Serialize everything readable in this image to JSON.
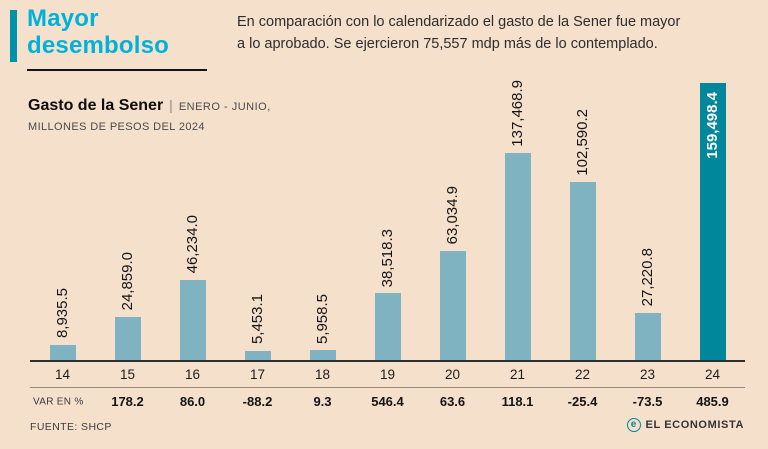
{
  "palette": {
    "background": "#f5e0cc",
    "title": "#00b2d9",
    "accent_bar": "#0092ab",
    "bar": "#7fb3c1",
    "bar_highlight": "#00879c",
    "axis": "#2f2f2f",
    "text_gray": "#4a4a4a"
  },
  "header": {
    "title_line1": "Mayor",
    "title_line2": "desembolso",
    "description_line1": "En comparación con lo calendarizado el gasto de la Sener fue mayor",
    "description_line2": "a lo aprobado. Se ejercieron 75,557 mdp más de lo contemplado."
  },
  "subtitle": {
    "name": "Gasto de la Sener",
    "separator": "|",
    "period": "ENERO - JUNIO,",
    "units": "MILLONES DE PESOS DEL 2024"
  },
  "chart_data": {
    "type": "bar",
    "title": "Gasto de la Sener",
    "subtitle": "Enero - Junio, millones de pesos del 2024",
    "categories": [
      "14",
      "15",
      "16",
      "17",
      "18",
      "19",
      "20",
      "21",
      "22",
      "23",
      "24"
    ],
    "values": [
      8935.5,
      24859.0,
      46234.0,
      5453.1,
      5958.5,
      38518.3,
      63034.9,
      137468.9,
      102590.2,
      27220.8,
      159498.4
    ],
    "value_labels": [
      "8,935.5",
      "24,859.0",
      "46,234.0",
      "5,453.1",
      "5,958.5",
      "38,518.3",
      "63,034.9",
      "137,468.9",
      "102,590.2",
      "27,220.8",
      "159,498.4"
    ],
    "highlight_index": 10,
    "var_label": "VAR EN %",
    "var_values": [
      "",
      "178.2",
      "86.0",
      "-88.2",
      "9.3",
      "546.4",
      "63.6",
      "118.1",
      "-25.4",
      "-73.5",
      "485.9"
    ],
    "ylim": [
      0,
      160000
    ],
    "grid": false,
    "legend": false
  },
  "footer": {
    "source": "FUENTE: SHCP",
    "brand": "EL ECONOMISTA",
    "brand_glyph": "e"
  }
}
